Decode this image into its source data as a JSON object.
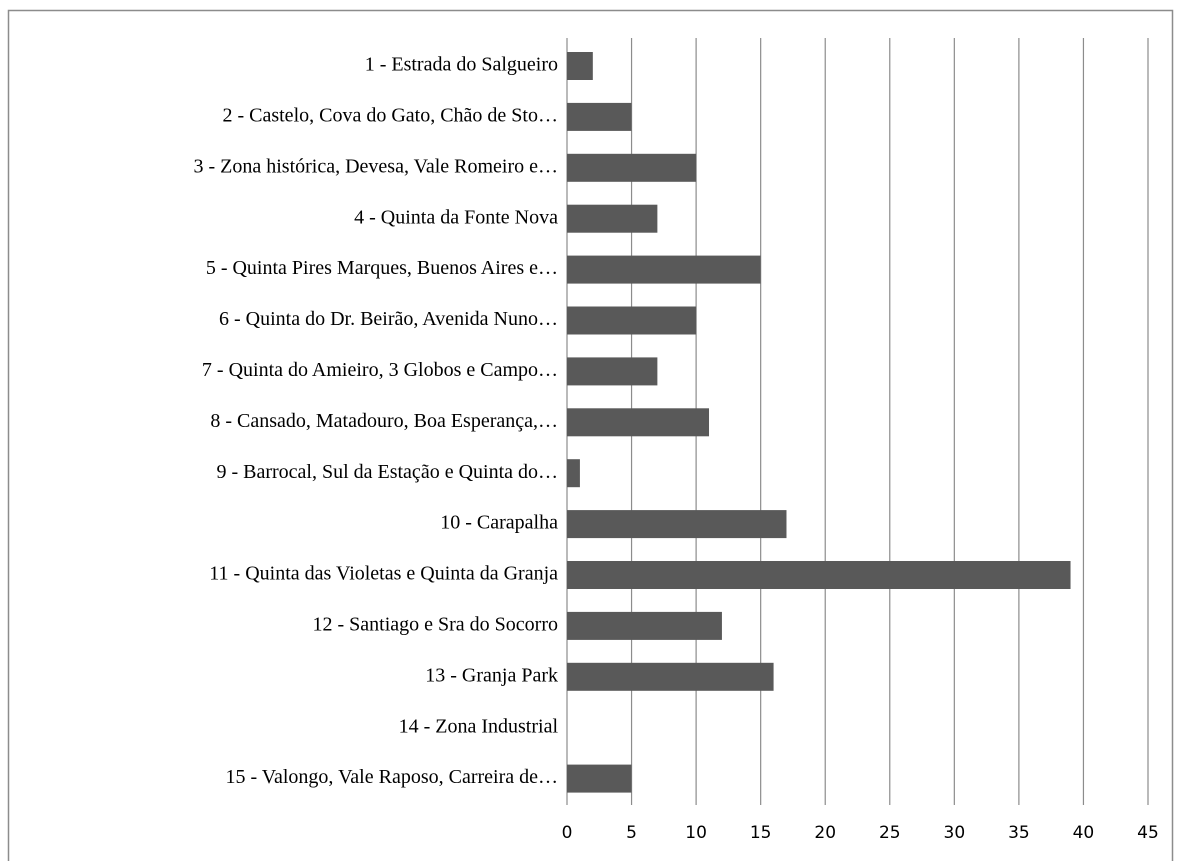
{
  "chart_data": {
    "type": "bar",
    "orientation": "horizontal",
    "categories": [
      "1 - Estrada do Salgueiro",
      "2 - Castelo, Cova do Gato, Chão de Sto…",
      "3 - Zona histórica, Devesa, Vale Romeiro e…",
      "4 - Quinta da Fonte Nova",
      "5 - Quinta Pires Marques, Buenos Aires e…",
      "6 - Quinta do Dr. Beirão, Avenida Nuno…",
      "7 - Quinta do Amieiro, 3 Globos e Campo…",
      "8 - Cansado, Matadouro, Boa Esperança,…",
      "9 - Barrocal, Sul da Estação e Quinta do…",
      "10 - Carapalha",
      "11 - Quinta das Violetas e Quinta da Granja",
      "12 - Santiago e Sra do Socorro",
      "13 - Granja Park",
      "14 - Zona Industrial",
      "15 - Valongo, Vale Raposo, Carreira de…"
    ],
    "values": [
      2,
      5,
      10,
      7,
      15,
      10,
      7,
      11,
      1,
      17,
      39,
      12,
      16,
      0,
      5
    ],
    "color": "#595959",
    "xlim": [
      0,
      45
    ],
    "xticks": [
      0,
      5,
      10,
      15,
      20,
      25,
      30,
      35,
      40,
      45
    ],
    "grid": true
  }
}
